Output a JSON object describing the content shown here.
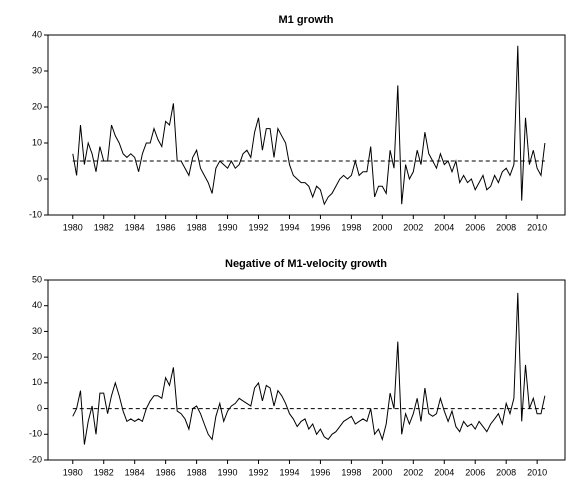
{
  "chart_data": [
    {
      "type": "line",
      "title": "M1 growth",
      "x": [
        1980,
        1980.25,
        1980.5,
        1980.75,
        1981,
        1981.25,
        1981.5,
        1981.75,
        1982,
        1982.25,
        1982.5,
        1982.75,
        1983,
        1983.25,
        1983.5,
        1983.75,
        1984,
        1984.25,
        1984.5,
        1984.75,
        1985,
        1985.25,
        1985.5,
        1985.75,
        1986,
        1986.25,
        1986.5,
        1986.75,
        1987,
        1987.25,
        1987.5,
        1987.75,
        1988,
        1988.25,
        1988.5,
        1988.75,
        1989,
        1989.25,
        1989.5,
        1989.75,
        1990,
        1990.25,
        1990.5,
        1990.75,
        1991,
        1991.25,
        1991.5,
        1991.75,
        1992,
        1992.25,
        1992.5,
        1992.75,
        1993,
        1993.25,
        1993.5,
        1993.75,
        1994,
        1994.25,
        1994.5,
        1994.75,
        1995,
        1995.25,
        1995.5,
        1995.75,
        1996,
        1996.25,
        1996.5,
        1996.75,
        1997,
        1997.25,
        1997.5,
        1997.75,
        1998,
        1998.25,
        1998.5,
        1998.75,
        1999,
        1999.25,
        1999.5,
        1999.75,
        2000,
        2000.25,
        2000.5,
        2000.75,
        2001,
        2001.25,
        2001.5,
        2001.75,
        2002,
        2002.25,
        2002.5,
        2002.75,
        2003,
        2003.25,
        2003.5,
        2003.75,
        2004,
        2004.25,
        2004.5,
        2004.75,
        2005,
        2005.25,
        2005.5,
        2005.75,
        2006,
        2006.25,
        2006.5,
        2006.75,
        2007,
        2007.25,
        2007.5,
        2007.75,
        2008,
        2008.25,
        2008.5,
        2008.75,
        2009,
        2009.25,
        2009.5,
        2009.75,
        2010,
        2010.25,
        2010.5
      ],
      "series": [
        {
          "color": "#000000",
          "values": [
            7,
            1,
            15,
            4,
            10,
            7,
            2,
            9,
            5,
            5,
            15,
            12,
            10,
            7,
            6,
            7,
            6,
            2,
            7,
            10,
            10,
            14,
            11,
            9,
            16,
            15,
            21,
            5,
            5,
            3,
            1,
            6,
            8,
            3,
            1,
            -1,
            -4,
            3,
            5,
            4,
            3,
            5,
            3,
            4,
            7,
            8,
            6,
            13,
            17,
            8,
            14,
            14,
            6,
            14,
            12,
            10,
            4,
            1,
            0,
            -1,
            -1,
            -2,
            -5,
            -2,
            -3,
            -7,
            -5,
            -4,
            -2,
            0,
            1,
            0,
            1,
            5,
            1,
            2,
            2,
            9,
            -5,
            -2,
            -2,
            -4,
            8,
            3,
            26,
            -7,
            4,
            0,
            2,
            8,
            4,
            13,
            7,
            5,
            3,
            7,
            4,
            5,
            2,
            5,
            -1,
            1,
            -1,
            0,
            -3,
            -1,
            1,
            -3,
            -2,
            1,
            -1,
            2,
            3,
            1,
            4,
            37,
            -6,
            17,
            4,
            8,
            3,
            1,
            10
          ]
        }
      ],
      "reference": 5,
      "xlim": [
        1978.4,
        2011.8
      ],
      "xticks": [
        1980,
        1982,
        1984,
        1986,
        1988,
        1990,
        1992,
        1994,
        1996,
        1998,
        2000,
        2002,
        2004,
        2006,
        2008,
        2010
      ],
      "ylim": [
        -10,
        40
      ],
      "yticks": [
        -10,
        0,
        10,
        20,
        30,
        40
      ]
    },
    {
      "type": "line",
      "title": "Negative of M1-velocity growth",
      "x": [
        1980,
        1980.25,
        1980.5,
        1980.75,
        1981,
        1981.25,
        1981.5,
        1981.75,
        1982,
        1982.25,
        1982.5,
        1982.75,
        1983,
        1983.25,
        1983.5,
        1983.75,
        1984,
        1984.25,
        1984.5,
        1984.75,
        1985,
        1985.25,
        1985.5,
        1985.75,
        1986,
        1986.25,
        1986.5,
        1986.75,
        1987,
        1987.25,
        1987.5,
        1987.75,
        1988,
        1988.25,
        1988.5,
        1988.75,
        1989,
        1989.25,
        1989.5,
        1989.75,
        1990,
        1990.25,
        1990.5,
        1990.75,
        1991,
        1991.25,
        1991.5,
        1991.75,
        1992,
        1992.25,
        1992.5,
        1992.75,
        1993,
        1993.25,
        1993.5,
        1993.75,
        1994,
        1994.25,
        1994.5,
        1994.75,
        1995,
        1995.25,
        1995.5,
        1995.75,
        1996,
        1996.25,
        1996.5,
        1996.75,
        1997,
        1997.25,
        1997.5,
        1997.75,
        1998,
        1998.25,
        1998.5,
        1998.75,
        1999,
        1999.25,
        1999.5,
        1999.75,
        2000,
        2000.25,
        2000.5,
        2000.75,
        2001,
        2001.25,
        2001.5,
        2001.75,
        2002,
        2002.25,
        2002.5,
        2002.75,
        2003,
        2003.25,
        2003.5,
        2003.75,
        2004,
        2004.25,
        2004.5,
        2004.75,
        2005,
        2005.25,
        2005.5,
        2005.75,
        2006,
        2006.25,
        2006.5,
        2006.75,
        2007,
        2007.25,
        2007.5,
        2007.75,
        2008,
        2008.25,
        2008.5,
        2008.75,
        2009,
        2009.25,
        2009.5,
        2009.75,
        2010,
        2010.25,
        2010.5
      ],
      "series": [
        {
          "color": "#000000",
          "values": [
            -3,
            0,
            7,
            -14,
            -5,
            1,
            -10,
            6,
            6,
            -2,
            5,
            10,
            5,
            -1,
            -5,
            -4,
            -5,
            -4,
            -5,
            0,
            3,
            5,
            5,
            4,
            12,
            9,
            16,
            -1,
            -2,
            -4,
            -8,
            0,
            1,
            -2,
            -6,
            -10,
            -12,
            -3,
            2,
            -5,
            -1,
            1,
            2,
            4,
            3,
            2,
            1,
            8,
            10,
            3,
            9,
            8,
            1,
            7,
            5,
            2,
            -2,
            -4,
            -7,
            -5,
            -4,
            -8,
            -6,
            -10,
            -8,
            -11,
            -12,
            -10,
            -9,
            -7,
            -5,
            -4,
            -3,
            -6,
            -5,
            -4,
            -5,
            0,
            -10,
            -8,
            -12,
            -6,
            6,
            0,
            26,
            -10,
            -2,
            -6,
            -2,
            4,
            -5,
            8,
            -2,
            -3,
            -2,
            4,
            -1,
            -5,
            -1,
            -7,
            -9,
            -5,
            -7,
            -6,
            -8,
            -5,
            -7,
            -9,
            -6,
            -4,
            -2,
            -6,
            2,
            -2,
            4,
            45,
            -5,
            17,
            0,
            4,
            -2,
            -2,
            5
          ]
        }
      ],
      "reference": 0,
      "xlim": [
        1978.4,
        2011.8
      ],
      "xticks": [
        1980,
        1982,
        1984,
        1986,
        1988,
        1990,
        1992,
        1994,
        1996,
        1998,
        2000,
        2002,
        2004,
        2006,
        2008,
        2010
      ],
      "ylim": [
        -20,
        50
      ],
      "yticks": [
        -20,
        -10,
        0,
        10,
        20,
        30,
        40,
        50
      ]
    }
  ]
}
